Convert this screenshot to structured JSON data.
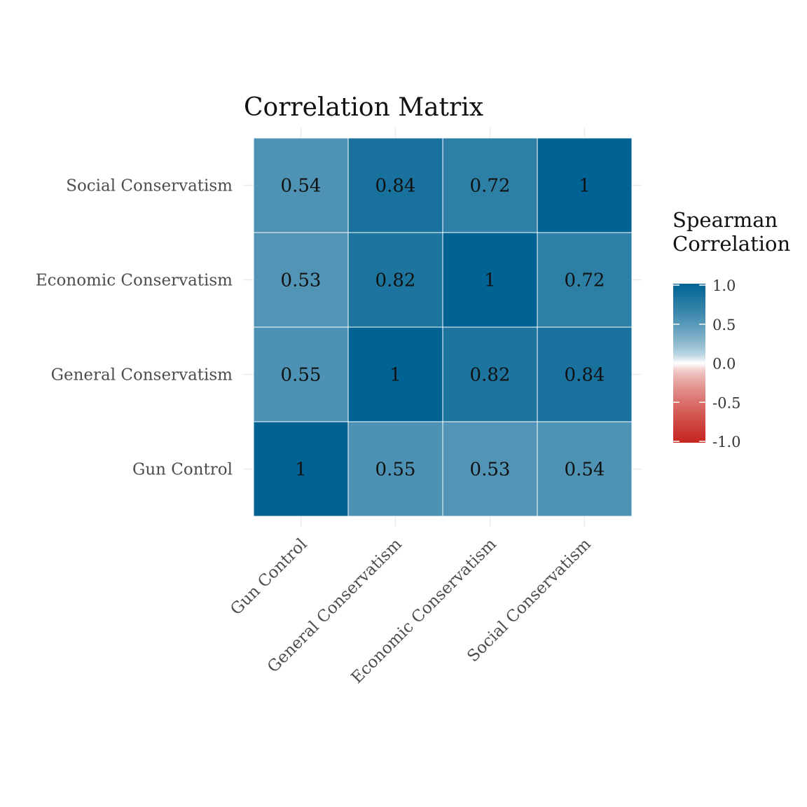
{
  "chart_data": {
    "type": "heatmap",
    "title": "Correlation Matrix",
    "x_categories": [
      "Gun Control",
      "General Conservatism",
      "Economic Conservatism",
      "Social Conservatism"
    ],
    "y_categories": [
      "Gun Control",
      "General Conservatism",
      "Economic Conservatism",
      "Social Conservatism"
    ],
    "values": [
      [
        1,
        0.55,
        0.53,
        0.54
      ],
      [
        0.55,
        1,
        0.82,
        0.84
      ],
      [
        0.53,
        0.82,
        1,
        0.72
      ],
      [
        0.54,
        0.84,
        0.72,
        1
      ]
    ],
    "cell_labels": [
      [
        "1",
        "0.55",
        "0.53",
        "0.54"
      ],
      [
        "0.55",
        "1",
        "0.82",
        "0.84"
      ],
      [
        "0.53",
        "0.82",
        "1",
        "0.72"
      ],
      [
        "0.54",
        "0.84",
        "0.72",
        "1"
      ]
    ],
    "legend": {
      "title_lines": [
        "Spearman",
        "Correlation"
      ],
      "ticks": [
        "1.0",
        "0.5",
        "0.0",
        "-0.5",
        "-1.0"
      ],
      "tick_values": [
        1.0,
        0.5,
        0.0,
        -0.5,
        -1.0
      ],
      "range": [
        -1,
        1
      ],
      "placement": "right"
    },
    "colors": {
      "high": "#006393",
      "mid": "#ffffff",
      "low": "#c6251f",
      "cell_border": "#ffffff",
      "grid": "#ebebeb"
    },
    "grid": true
  }
}
